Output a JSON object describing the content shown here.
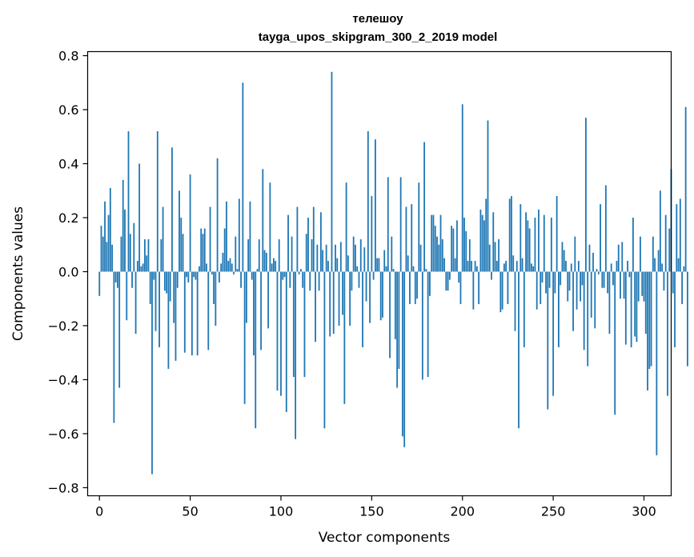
{
  "chart_data": {
    "type": "bar",
    "title": "телешоу",
    "subtitle": "tayga_upos_skipgram_300_2_2019 model",
    "xlabel": "Vector components",
    "ylabel": "Components values",
    "xlim": [
      -6.5,
      315
    ],
    "ylim": [
      -0.83,
      0.815
    ],
    "xticks": [
      0,
      50,
      100,
      150,
      200,
      250,
      300
    ],
    "yticks": [
      -0.8,
      -0.6,
      -0.4,
      -0.2,
      0.0,
      0.2,
      0.4,
      0.6,
      0.8
    ],
    "ytick_labels": [
      "−0.8",
      "−0.6",
      "−0.4",
      "−0.2",
      "0.0",
      "0.2",
      "0.4",
      "0.6",
      "0.8"
    ],
    "grid": false,
    "legend": "none",
    "bar_color": "#1f77b4",
    "values": [
      -0.09,
      0.17,
      0.13,
      0.26,
      0.11,
      0.21,
      0.31,
      0.1,
      -0.56,
      -0.04,
      -0.06,
      -0.43,
      0.13,
      0.34,
      0.23,
      -0.18,
      0.52,
      0.14,
      -0.06,
      0.18,
      -0.23,
      0.04,
      0.4,
      0.02,
      0.03,
      0.12,
      0.06,
      0.12,
      -0.12,
      -0.75,
      -0.03,
      -0.22,
      0.52,
      -0.28,
      0.12,
      0.24,
      -0.07,
      -0.08,
      -0.36,
      -0.11,
      0.46,
      -0.19,
      -0.33,
      -0.06,
      0.3,
      0.2,
      0.14,
      -0.3,
      -0.02,
      -0.04,
      0.36,
      -0.31,
      -0.02,
      -0.03,
      -0.31,
      0.02,
      0.16,
      0.14,
      0.16,
      0.03,
      -0.29,
      0.24,
      -0.01,
      -0.12,
      -0.2,
      0.42,
      -0.04,
      0.03,
      0.07,
      0.16,
      0.26,
      0.04,
      0.05,
      0.03,
      -0.01,
      0.13,
      0.01,
      0.27,
      -0.06,
      0.7,
      -0.49,
      -0.19,
      0.12,
      0.26,
      -0.03,
      -0.31,
      -0.58,
      0.01,
      0.12,
      -0.29,
      0.38,
      0.08,
      0.07,
      -0.21,
      0.33,
      0.03,
      0.05,
      0.04,
      -0.44,
      0.12,
      -0.46,
      -0.03,
      -0.02,
      -0.52,
      0.21,
      -0.06,
      0.13,
      -0.39,
      -0.62,
      0.24,
      -0.01,
      0.01,
      -0.06,
      -0.39,
      0.14,
      0.2,
      -0.07,
      0.12,
      0.24,
      -0.26,
      0.1,
      -0.07,
      0.22,
      0.08,
      -0.58,
      0.1,
      0.04,
      -0.24,
      0.74,
      -0.23,
      0.1,
      0.05,
      -0.2,
      0.11,
      -0.16,
      -0.49,
      0.33,
      0.06,
      -0.2,
      -0.07,
      0.13,
      0.1,
      0.02,
      -0.06,
      0.12,
      -0.28,
      0.09,
      -0.11,
      0.52,
      -0.19,
      0.28,
      -0.03,
      0.49,
      0.05,
      0.05,
      -0.18,
      -0.17,
      0.08,
      0.02,
      0.35,
      -0.32,
      0.13,
      0.01,
      -0.25,
      -0.43,
      -0.36,
      0.35,
      -0.61,
      -0.65,
      0.24,
      0.06,
      -0.12,
      0.25,
      0.02,
      -0.12,
      -0.1,
      0.33,
      0.1,
      -0.4,
      0.48,
      0.01,
      -0.39,
      -0.09,
      0.21,
      0.21,
      0.17,
      0.13,
      0.1,
      0.21,
      0.12,
      0.05,
      -0.07,
      -0.07,
      -0.03,
      0.17,
      0.16,
      0.05,
      0.19,
      -0.04,
      -0.12,
      0.62,
      0.2,
      0.15,
      0.04,
      0.12,
      0.04,
      -0.14,
      0.04,
      0.02,
      -0.12,
      0.23,
      0.21,
      0.19,
      0.27,
      0.56,
      0.1,
      -0.03,
      0.22,
      0.11,
      0.04,
      0.12,
      -0.15,
      -0.14,
      0.03,
      0.04,
      -0.12,
      0.27,
      0.28,
      0.06,
      -0.22,
      0.04,
      -0.58,
      0.25,
      0.05,
      -0.28,
      0.22,
      0.19,
      0.16,
      0.03,
      0.02,
      0.2,
      -0.14,
      0.23,
      -0.12,
      -0.04,
      0.21,
      -0.08,
      -0.51,
      -0.06,
      0.2,
      -0.46,
      -0.08,
      0.28,
      -0.28,
      -0.05,
      0.11,
      0.08,
      0.04,
      -0.11,
      -0.07,
      0.03,
      -0.22,
      0.13,
      -0.14,
      0.04,
      -0.11,
      -0.05,
      -0.29,
      0.57,
      -0.35,
      0.1,
      -0.17,
      0.07,
      -0.21,
      0.01,
      -0.01,
      0.25,
      -0.06,
      -0.06,
      0.32,
      -0.08,
      -0.23,
      0.03,
      -0.05,
      -0.53,
      0.04,
      0.1,
      -0.1,
      0.11,
      -0.1,
      -0.27,
      0.04,
      -0.02,
      -0.28,
      0.2,
      -0.24,
      -0.26,
      -0.11,
      0.13,
      -0.09,
      -0.11,
      -0.23,
      -0.44,
      -0.36,
      -0.35,
      0.13,
      0.05,
      -0.68,
      0.08,
      0.3,
      0.03,
      -0.07,
      0.21,
      -0.46,
      0.16,
      0.38,
      -0.08,
      -0.28,
      0.25,
      0.05,
      0.27,
      -0.12,
      0.02,
      0.61,
      -0.35
    ]
  }
}
